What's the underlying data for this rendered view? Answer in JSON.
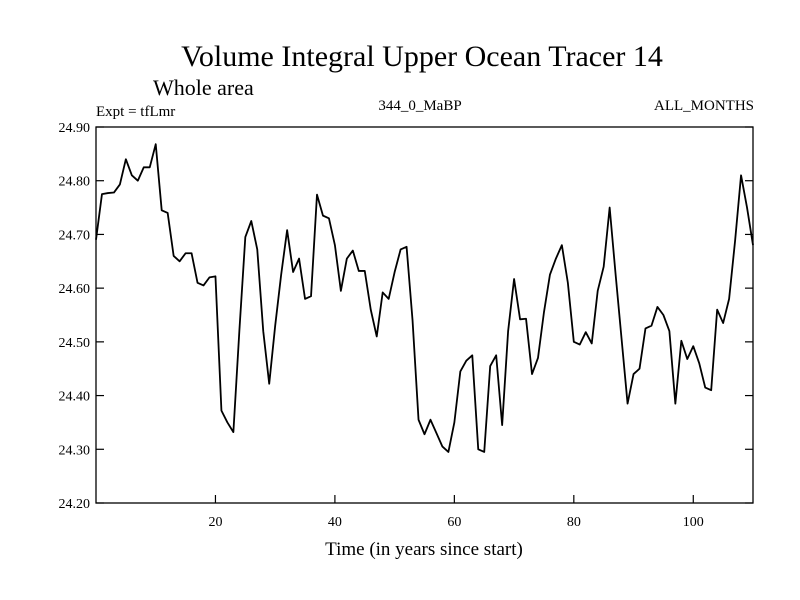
{
  "chart_data": {
    "type": "line",
    "title": "Volume Integral Upper Ocean Tracer 14",
    "subtitle": "Whole area",
    "expt_label": "Expt = tfLmr",
    "center_label": "344_0_MaBP",
    "right_label": "ALL_MONTHS",
    "xlabel": "Time (in years since start)",
    "ylabel": "",
    "xlim": [
      0,
      110
    ],
    "ylim": [
      24.2,
      24.9
    ],
    "x_ticks": [
      20,
      40,
      60,
      80,
      100
    ],
    "x_tick_labels": [
      "20",
      "40",
      "60",
      "80",
      "100"
    ],
    "y_ticks": [
      24.2,
      24.3,
      24.4,
      24.5,
      24.6,
      24.7,
      24.8,
      24.9
    ],
    "y_tick_labels": [
      "24.20",
      "24.30",
      "24.40",
      "24.50",
      "24.60",
      "24.70",
      "24.80",
      "24.90"
    ],
    "grid": false,
    "series": [
      {
        "name": "Tracer 14",
        "color": "#000000",
        "x": [
          0,
          1,
          2,
          3,
          4,
          5,
          6,
          7,
          8,
          9,
          10,
          11,
          12,
          13,
          14,
          15,
          16,
          17,
          18,
          19,
          20,
          21,
          22,
          23,
          24,
          25,
          26,
          27,
          28,
          29,
          30,
          31,
          32,
          33,
          34,
          35,
          36,
          37,
          38,
          39,
          40,
          41,
          42,
          43,
          44,
          45,
          46,
          47,
          48,
          49,
          50,
          51,
          52,
          53,
          54,
          55,
          56,
          57,
          58,
          59,
          60,
          61,
          62,
          63,
          64,
          65,
          66,
          67,
          68,
          69,
          70,
          71,
          72,
          73,
          74,
          75,
          76,
          77,
          78,
          79,
          80,
          81,
          82,
          83,
          84,
          85,
          86,
          87,
          88,
          89,
          90,
          91,
          92,
          93,
          94,
          95,
          96,
          97,
          98,
          99,
          100,
          101,
          102,
          103,
          104,
          105,
          106,
          107,
          108,
          109,
          110
        ],
        "values": [
          24.69,
          24.775,
          24.777,
          24.778,
          24.793,
          24.84,
          24.81,
          24.8,
          24.825,
          24.825,
          24.868,
          24.745,
          24.74,
          24.66,
          24.65,
          24.665,
          24.665,
          24.61,
          24.605,
          24.62,
          24.622,
          24.372,
          24.35,
          24.332,
          24.52,
          24.695,
          24.725,
          24.672,
          24.52,
          24.422,
          24.53,
          24.625,
          24.708,
          24.63,
          24.655,
          24.58,
          24.585,
          24.774,
          24.735,
          24.73,
          24.68,
          24.595,
          24.655,
          24.67,
          24.632,
          24.632,
          24.56,
          24.51,
          24.592,
          24.58,
          24.63,
          24.672,
          24.677,
          24.54,
          24.355,
          24.328,
          24.355,
          24.33,
          24.305,
          24.295,
          24.35,
          24.445,
          24.465,
          24.475,
          24.3,
          24.295,
          24.455,
          24.475,
          24.345,
          24.52,
          24.617,
          24.542,
          24.543,
          24.44,
          24.47,
          24.555,
          24.625,
          24.655,
          24.68,
          24.61,
          24.5,
          24.495,
          24.518,
          24.497,
          24.595,
          24.64,
          24.75,
          24.625,
          24.505,
          24.385,
          24.44,
          24.45,
          24.525,
          24.53,
          24.565,
          24.55,
          24.52,
          24.385,
          24.502,
          24.468,
          24.492,
          24.46,
          24.415,
          24.41,
          24.56,
          24.535,
          24.58,
          24.688,
          24.81,
          24.75,
          24.68
        ]
      }
    ]
  }
}
